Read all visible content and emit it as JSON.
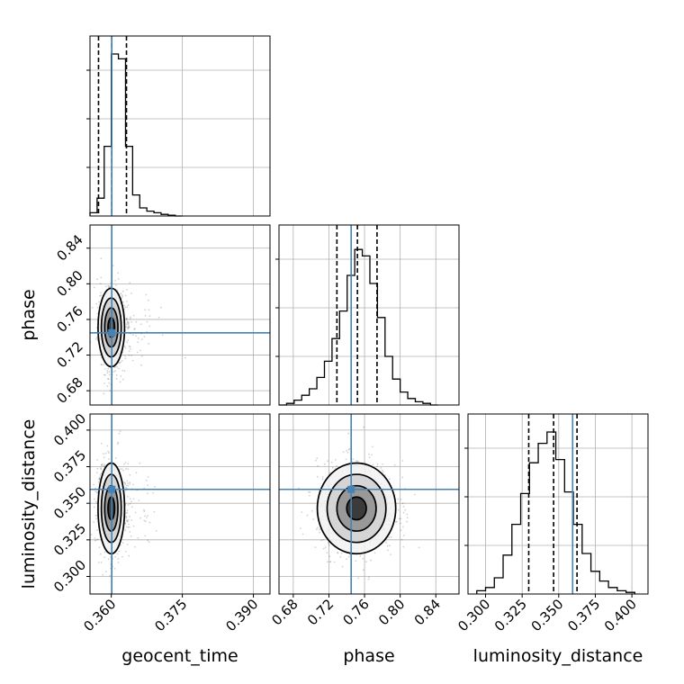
{
  "chart_data": {
    "type": "corner",
    "parameters": [
      "geocent_time",
      "phase",
      "luminosity_distance"
    ],
    "axis_labels": {
      "geocent_time": "geocent_time",
      "phase": "phase",
      "luminosity_distance": "luminosity_distance"
    },
    "ranges": {
      "geocent_time": [
        0.3555,
        0.3935
      ],
      "phase": [
        0.664,
        0.866
      ],
      "luminosity_distance": [
        0.288,
        0.411
      ]
    },
    "ticks": {
      "geocent_time": [
        0.36,
        0.375,
        0.39
      ],
      "phase": [
        0.68,
        0.72,
        0.76,
        0.8,
        0.84
      ],
      "luminosity_distance": [
        0.3,
        0.325,
        0.35,
        0.375,
        0.4
      ]
    },
    "tick_labels": {
      "geocent_time": [
        "0.360",
        "0.375",
        "0.390"
      ],
      "phase": [
        "0.68",
        "0.72",
        "0.76",
        "0.80",
        "0.84"
      ],
      "luminosity_distance": [
        "0.300",
        "0.325",
        "0.350",
        "0.375",
        "0.400"
      ]
    },
    "truths": {
      "geocent_time": 0.3601,
      "phase": 0.745,
      "luminosity_distance": 0.3595
    },
    "quantiles": {
      "geocent_time": [
        0.3573,
        0.3601,
        0.3632
      ],
      "phase": [
        0.729,
        0.752,
        0.774
      ],
      "luminosity_distance": [
        0.3295,
        0.3465,
        0.3625
      ]
    },
    "centers": {
      "geocent_time": 0.36,
      "phase": 0.751,
      "luminosity_distance": 0.3465
    },
    "histograms": {
      "geocent_time": {
        "edges": [
          0.3555,
          0.357,
          0.3585,
          0.36,
          0.3615,
          0.363,
          0.3645,
          0.366,
          0.3675,
          0.369,
          0.3705,
          0.372,
          0.3735,
          0.375
        ],
        "counts": [
          0.02,
          0.11,
          0.43,
          1.0,
          0.97,
          0.43,
          0.13,
          0.05,
          0.03,
          0.02,
          0.01,
          0.005,
          0.0
        ]
      },
      "phase": {
        "edges": [
          0.664,
          0.6725,
          0.681,
          0.6895,
          0.698,
          0.7065,
          0.715,
          0.7235,
          0.732,
          0.7405,
          0.749,
          0.7575,
          0.766,
          0.7745,
          0.783,
          0.7915,
          0.8,
          0.8085,
          0.817,
          0.8255,
          0.834,
          0.8425
        ],
        "counts": [
          0.0,
          0.01,
          0.03,
          0.06,
          0.1,
          0.17,
          0.27,
          0.41,
          0.58,
          0.8,
          0.96,
          0.92,
          0.75,
          0.54,
          0.3,
          0.16,
          0.08,
          0.04,
          0.02,
          0.01,
          0.0
        ]
      },
      "luminosity_distance": {
        "edges": [
          0.294,
          0.3,
          0.306,
          0.312,
          0.318,
          0.324,
          0.33,
          0.336,
          0.342,
          0.348,
          0.354,
          0.36,
          0.366,
          0.372,
          0.378,
          0.384,
          0.39,
          0.396,
          0.402
        ],
        "counts": [
          0.02,
          0.04,
          0.1,
          0.24,
          0.43,
          0.62,
          0.81,
          0.93,
          1.0,
          0.83,
          0.63,
          0.43,
          0.25,
          0.14,
          0.08,
          0.04,
          0.02,
          0.01
        ]
      }
    },
    "truth_color": "#4682b4",
    "contour_color": "#000000",
    "grid": true
  }
}
